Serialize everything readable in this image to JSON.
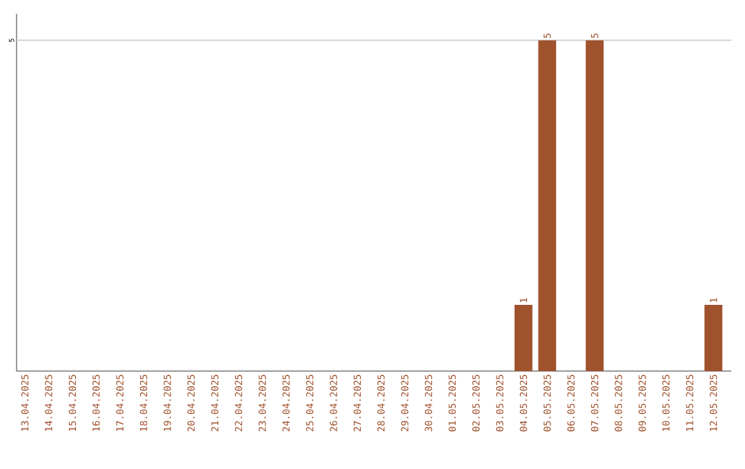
{
  "chart_data": {
    "type": "bar",
    "categories": [
      "13.04.2025",
      "14.04.2025",
      "15.04.2025",
      "16.04.2025",
      "17.04.2025",
      "18.04.2025",
      "19.04.2025",
      "20.04.2025",
      "21.04.2025",
      "22.04.2025",
      "23.04.2025",
      "24.04.2025",
      "25.04.2025",
      "26.04.2025",
      "27.04.2025",
      "28.04.2025",
      "29.04.2025",
      "30.04.2025",
      "01.05.2025",
      "02.05.2025",
      "03.05.2025",
      "04.05.2025",
      "05.05.2025",
      "06.05.2025",
      "07.05.2025",
      "08.05.2025",
      "09.05.2025",
      "10.05.2025",
      "11.05.2025",
      "12.05.2025"
    ],
    "values": [
      null,
      null,
      null,
      null,
      null,
      null,
      null,
      null,
      null,
      null,
      null,
      null,
      null,
      null,
      null,
      null,
      null,
      null,
      null,
      null,
      null,
      1,
      5,
      null,
      5,
      null,
      null,
      null,
      null,
      1
    ],
    "data_labels": true,
    "color": "#a0522d",
    "ref_lines": [
      {
        "axis": "y",
        "value": 5,
        "label": "5",
        "color": "#cccccc"
      }
    ]
  }
}
